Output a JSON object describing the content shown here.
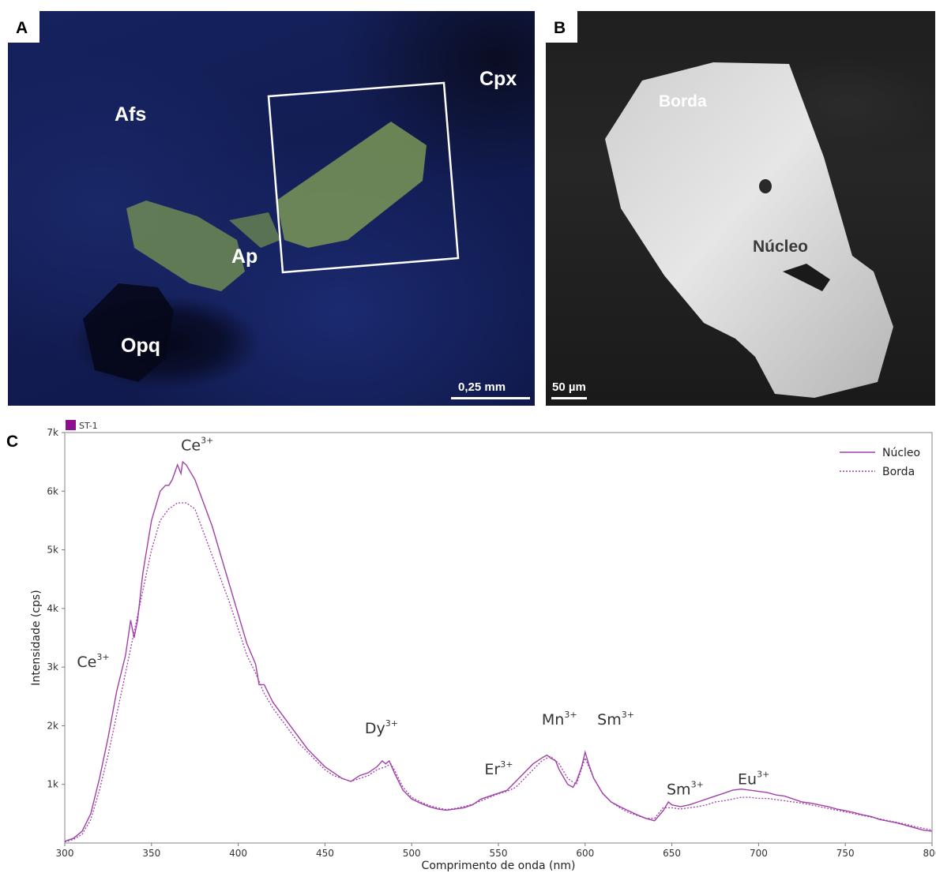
{
  "panel_a": {
    "letter": "A",
    "labels": {
      "afs": "Afs",
      "cpx": "Cpx",
      "ap": "Ap",
      "opq": "Opq"
    },
    "scale": "0,25 mm"
  },
  "panel_b": {
    "letter": "B",
    "labels": {
      "borda": "Borda",
      "nucleo": "Núcleo"
    },
    "scale": "50 µm"
  },
  "panel_c": {
    "letter": "C"
  },
  "chart_data": {
    "type": "line",
    "sample": "ST-1",
    "xlabel": "Comprimento de onda (nm)",
    "ylabel": "Intensidade (cps)",
    "xlim": [
      300,
      800
    ],
    "ylim": [
      0,
      7000
    ],
    "xticks": [
      300,
      350,
      400,
      450,
      500,
      550,
      600,
      650,
      700,
      750,
      800
    ],
    "xtick_labels": [
      "300",
      "350",
      "400",
      "450",
      "500",
      "550",
      "600",
      "650",
      "700",
      "750",
      "800"
    ],
    "yticks": [
      1000,
      2000,
      3000,
      4000,
      5000,
      6000,
      7000
    ],
    "ytick_labels": [
      "1k",
      "2k",
      "3k",
      "4k",
      "5k",
      "6k",
      "7k"
    ],
    "legend_position": "top-right",
    "colors": {
      "line": "#a040a8",
      "legend_swatch": "#8e0f8e"
    },
    "series": [
      {
        "name": "Núcleo",
        "style": "solid",
        "x": [
          300,
          305,
          310,
          315,
          320,
          325,
          330,
          335,
          338,
          340,
          342,
          345,
          350,
          355,
          358,
          360,
          362,
          365,
          367,
          368,
          370,
          372,
          375,
          380,
          385,
          390,
          395,
          400,
          405,
          410,
          412,
          415,
          420,
          425,
          430,
          435,
          440,
          445,
          450,
          455,
          460,
          465,
          470,
          475,
          480,
          483,
          485,
          487,
          490,
          495,
          500,
          505,
          510,
          515,
          520,
          525,
          530,
          535,
          540,
          545,
          550,
          555,
          560,
          565,
          570,
          575,
          578,
          580,
          583,
          585,
          590,
          593,
          595,
          598,
          600,
          602,
          605,
          610,
          615,
          620,
          625,
          630,
          635,
          640,
          645,
          648,
          650,
          655,
          660,
          665,
          670,
          675,
          680,
          685,
          690,
          695,
          700,
          705,
          710,
          715,
          720,
          725,
          730,
          735,
          740,
          745,
          750,
          755,
          760,
          765,
          770,
          775,
          780,
          785,
          790,
          795,
          800
        ],
        "y": [
          30,
          80,
          200,
          500,
          1100,
          1800,
          2600,
          3200,
          3800,
          3500,
          3800,
          4600,
          5500,
          6000,
          6100,
          6100,
          6200,
          6450,
          6300,
          6500,
          6450,
          6350,
          6200,
          5800,
          5400,
          4900,
          4400,
          3900,
          3400,
          3050,
          2700,
          2700,
          2400,
          2200,
          2000,
          1800,
          1600,
          1450,
          1300,
          1200,
          1100,
          1050,
          1150,
          1200,
          1300,
          1400,
          1350,
          1400,
          1200,
          900,
          750,
          680,
          620,
          580,
          560,
          580,
          600,
          650,
          750,
          800,
          850,
          900,
          1050,
          1200,
          1350,
          1450,
          1500,
          1450,
          1400,
          1250,
          1000,
          950,
          1050,
          1300,
          1550,
          1350,
          1100,
          850,
          700,
          620,
          550,
          480,
          420,
          380,
          550,
          700,
          650,
          620,
          650,
          700,
          750,
          800,
          850,
          900,
          920,
          900,
          880,
          860,
          820,
          800,
          750,
          700,
          680,
          650,
          620,
          580,
          550,
          520,
          480,
          450,
          400,
          370,
          340,
          300,
          260,
          220,
          200
        ]
      },
      {
        "name": "Borda",
        "style": "dotted",
        "x": [
          300,
          305,
          310,
          315,
          320,
          325,
          330,
          335,
          340,
          345,
          350,
          355,
          360,
          365,
          370,
          375,
          380,
          385,
          390,
          395,
          400,
          405,
          410,
          415,
          420,
          425,
          430,
          435,
          440,
          445,
          450,
          455,
          460,
          465,
          470,
          475,
          480,
          485,
          488,
          490,
          495,
          500,
          505,
          510,
          515,
          520,
          525,
          530,
          535,
          540,
          545,
          550,
          555,
          560,
          565,
          570,
          575,
          580,
          585,
          590,
          595,
          600,
          605,
          610,
          615,
          620,
          625,
          630,
          635,
          640,
          645,
          650,
          655,
          660,
          665,
          670,
          675,
          680,
          685,
          690,
          695,
          700,
          705,
          710,
          715,
          720,
          725,
          730,
          735,
          740,
          745,
          750,
          755,
          760,
          765,
          770,
          775,
          780,
          785,
          790,
          795,
          800
        ],
        "y": [
          20,
          60,
          150,
          400,
          900,
          1500,
          2200,
          2900,
          3600,
          4300,
          5000,
          5500,
          5700,
          5800,
          5800,
          5700,
          5300,
          4900,
          4500,
          4100,
          3650,
          3200,
          2900,
          2550,
          2300,
          2100,
          1900,
          1700,
          1550,
          1400,
          1250,
          1150,
          1100,
          1050,
          1100,
          1150,
          1250,
          1300,
          1350,
          1250,
          950,
          780,
          700,
          640,
          600,
          570,
          590,
          620,
          660,
          720,
          780,
          840,
          880,
          950,
          1100,
          1250,
          1400,
          1480,
          1350,
          1100,
          1000,
          1450,
          1100,
          850,
          700,
          600,
          520,
          470,
          420,
          420,
          600,
          600,
          580,
          600,
          620,
          650,
          700,
          720,
          750,
          780,
          780,
          760,
          760,
          740,
          720,
          700,
          680,
          650,
          620,
          590,
          560,
          530,
          500,
          470,
          440,
          410,
          380,
          350,
          320,
          280,
          250,
          220
        ]
      }
    ],
    "annotations": [
      {
        "ion": "Ce",
        "charge": "3+",
        "x": 367,
        "y": 6700
      },
      {
        "ion": "Ce",
        "charge": "3+",
        "x": 307,
        "y": 3000
      },
      {
        "ion": "Dy",
        "charge": "3+",
        "x": 473,
        "y": 1870
      },
      {
        "ion": "Er",
        "charge": "3+",
        "x": 542,
        "y": 1170
      },
      {
        "ion": "Mn",
        "charge": "3+",
        "x": 575,
        "y": 2020
      },
      {
        "ion": "Sm",
        "charge": "3+",
        "x": 607,
        "y": 2020
      },
      {
        "ion": "Sm",
        "charge": "3+",
        "x": 647,
        "y": 830
      },
      {
        "ion": "Eu",
        "charge": "3+",
        "x": 688,
        "y": 1000
      }
    ]
  }
}
